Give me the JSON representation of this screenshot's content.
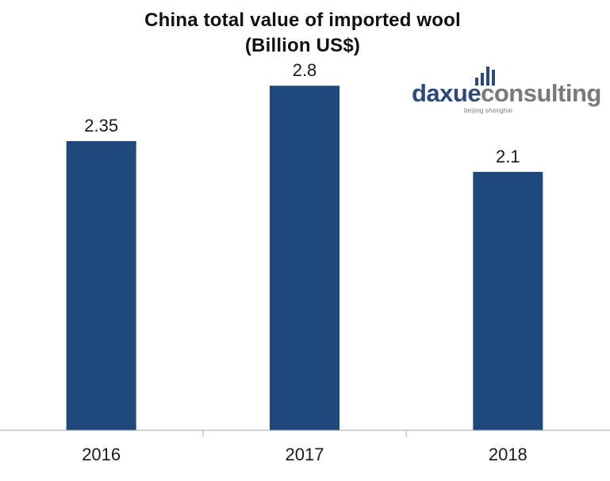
{
  "chart_data": {
    "type": "bar",
    "title": "China total value of imported wool",
    "subtitle": "(Billion US$)",
    "categories": [
      "2016",
      "2017",
      "2018"
    ],
    "values": [
      2.35,
      2.8,
      2.1
    ],
    "data_labels": [
      "2.35",
      "2.8",
      "2.1"
    ],
    "ylim": [
      0,
      3.4
    ],
    "grid": false,
    "y_axis_visible": false,
    "bar_color": "#1f497d",
    "axis_color": "#a6a6a6"
  },
  "logo": {
    "brand_part1": "daxue",
    "brand_part2": "consulting",
    "tagline": "beijing shanghai",
    "brand_color_primary": "#2b4a7c",
    "brand_color_secondary": "#7a7a7a"
  }
}
